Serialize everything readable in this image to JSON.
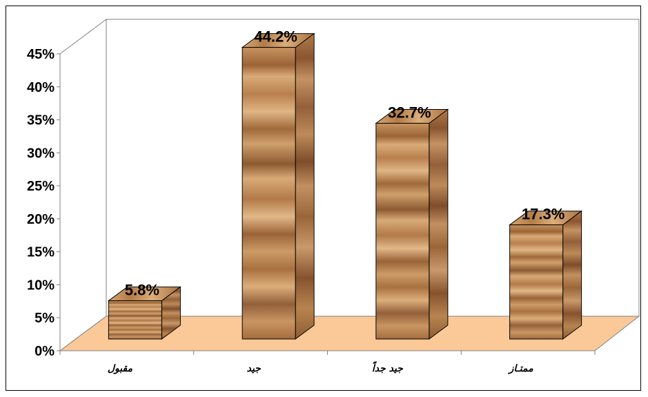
{
  "chart_data": {
    "type": "bar",
    "categories": [
      "مقبول",
      "جيد",
      "جيد جداً",
      "ممتـاز"
    ],
    "values": [
      5.8,
      44.2,
      32.7,
      17.3
    ],
    "data_labels": [
      "5.8%",
      "44.2%",
      "32.7%",
      "17.3%"
    ],
    "y_ticks": [
      "0%",
      "5%",
      "10%",
      "15%",
      "20%",
      "25%",
      "30%",
      "35%",
      "40%",
      "45%"
    ],
    "ylim": [
      0,
      45
    ],
    "y_unit": "%",
    "title": "",
    "xlabel": "",
    "ylabel": "",
    "grid": false,
    "style": "3d",
    "colors": {
      "bar_wood": "#c99560",
      "bar_wood_dark": "#8f5a30",
      "floor": "#fbc898",
      "axis": "#808080",
      "frame": "#000000"
    }
  }
}
